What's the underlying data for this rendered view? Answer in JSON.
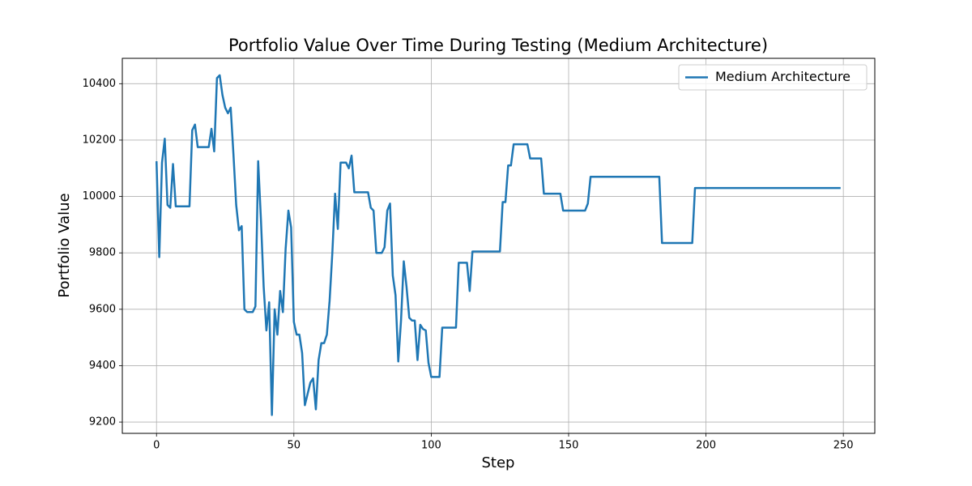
{
  "chart_data": {
    "type": "line",
    "title": "Portfolio Value Over Time During Testing (Medium Architecture)",
    "x_label": "Step",
    "y_label": "Portfolio Value",
    "x": [
      0,
      1,
      2,
      3,
      4,
      5,
      6,
      7,
      8,
      9,
      10,
      11,
      12,
      13,
      14,
      15,
      16,
      17,
      18,
      19,
      20,
      21,
      22,
      23,
      24,
      25,
      26,
      27,
      28,
      29,
      30,
      31,
      32,
      33,
      34,
      35,
      36,
      37,
      38,
      39,
      40,
      41,
      42,
      43,
      44,
      45,
      46,
      47,
      48,
      49,
      50,
      51,
      52,
      53,
      54,
      55,
      56,
      57,
      58,
      59,
      60,
      61,
      62,
      63,
      64,
      65,
      66,
      67,
      68,
      69,
      70,
      71,
      72,
      73,
      74,
      75,
      76,
      77,
      78,
      79,
      80,
      81,
      82,
      83,
      84,
      85,
      86,
      87,
      88,
      89,
      90,
      91,
      92,
      93,
      94,
      95,
      96,
      97,
      98,
      99,
      100,
      101,
      102,
      103,
      104,
      105,
      106,
      107,
      108,
      109,
      110,
      111,
      112,
      113,
      114,
      115,
      116,
      117,
      118,
      119,
      120,
      121,
      122,
      123,
      124,
      125,
      126,
      127,
      128,
      129,
      130,
      131,
      132,
      133,
      134,
      135,
      136,
      137,
      138,
      139,
      140,
      141,
      142,
      143,
      144,
      145,
      146,
      147,
      148,
      149,
      150,
      151,
      152,
      153,
      154,
      155,
      156,
      157,
      158,
      159,
      160,
      161,
      162,
      163,
      164,
      165,
      166,
      167,
      168,
      169,
      170,
      171,
      172,
      173,
      174,
      175,
      176,
      177,
      178,
      179,
      180,
      181,
      182,
      183,
      184,
      185,
      186,
      187,
      188,
      189,
      190,
      191,
      192,
      193,
      194,
      195,
      196,
      197,
      198,
      199,
      200,
      201,
      202,
      203,
      204,
      205,
      206,
      207,
      208,
      209,
      210,
      211,
      212,
      213,
      214,
      215,
      216,
      217,
      218,
      219,
      220,
      221,
      222,
      223,
      224,
      225,
      226,
      227,
      228,
      229,
      230,
      231,
      232,
      233,
      234,
      235,
      236,
      237,
      238,
      239,
      240,
      241,
      242,
      243,
      244,
      245,
      246,
      247,
      248,
      249
    ],
    "series": [
      {
        "name": "Medium Architecture",
        "color": "#1f77b4",
        "values": [
          10125,
          9785,
          10120,
          10205,
          9970,
          9960,
          10115,
          9965,
          9965,
          9965,
          9965,
          9965,
          9965,
          10235,
          10255,
          10175,
          10175,
          10175,
          10175,
          10175,
          10240,
          10160,
          10420,
          10430,
          10360,
          10315,
          10295,
          10315,
          10150,
          9970,
          9880,
          9895,
          9600,
          9590,
          9590,
          9590,
          9610,
          10125,
          9920,
          9680,
          9525,
          9625,
          9225,
          9600,
          9510,
          9665,
          9590,
          9815,
          9950,
          9890,
          9555,
          9510,
          9510,
          9445,
          9260,
          9300,
          9340,
          9355,
          9245,
          9420,
          9480,
          9480,
          9510,
          9630,
          9800,
          10010,
          9885,
          10120,
          10120,
          10120,
          10100,
          10145,
          10015,
          10015,
          10015,
          10015,
          10015,
          10015,
          9960,
          9950,
          9800,
          9800,
          9800,
          9820,
          9950,
          9975,
          9720,
          9650,
          9415,
          9560,
          9770,
          9680,
          9570,
          9560,
          9560,
          9420,
          9545,
          9530,
          9525,
          9410,
          9360,
          9360,
          9360,
          9360,
          9535,
          9535,
          9535,
          9535,
          9535,
          9535,
          9765,
          9765,
          9765,
          9765,
          9665,
          9805,
          9805,
          9805,
          9805,
          9805,
          9805,
          9805,
          9805,
          9805,
          9805,
          9805,
          9980,
          9980,
          10110,
          10110,
          10185,
          10185,
          10185,
          10185,
          10185,
          10185,
          10135,
          10135,
          10135,
          10135,
          10135,
          10010,
          10010,
          10010,
          10010,
          10010,
          10010,
          10010,
          9950,
          9950,
          9950,
          9950,
          9950,
          9950,
          9950,
          9950,
          9950,
          9975,
          10070,
          10070,
          10070,
          10070,
          10070,
          10070,
          10070,
          10070,
          10070,
          10070,
          10070,
          10070,
          10070,
          10070,
          10070,
          10070,
          10070,
          10070,
          10070,
          10070,
          10070,
          10070,
          10070,
          10070,
          10070,
          10070,
          9835,
          9835,
          9835,
          9835,
          9835,
          9835,
          9835,
          9835,
          9835,
          9835,
          9835,
          9835,
          10030,
          10030,
          10030,
          10030,
          10030,
          10030,
          10030,
          10030,
          10030,
          10030,
          10030,
          10030,
          10030,
          10030,
          10030,
          10030,
          10030,
          10030,
          10030,
          10030,
          10030,
          10030,
          10030,
          10030,
          10030,
          10030,
          10030,
          10030,
          10030,
          10030,
          10030,
          10030,
          10030,
          10030,
          10030,
          10030,
          10030,
          10030,
          10030,
          10030,
          10030,
          10030,
          10030,
          10030,
          10030,
          10030,
          10030,
          10030,
          10030,
          10030,
          10030,
          10030,
          10030,
          10030
        ]
      }
    ],
    "xlim": [
      -12.45,
      261.45
    ],
    "ylim": [
      9160,
      10490
    ],
    "xticks": [
      0,
      50,
      100,
      150,
      200,
      250
    ],
    "yticks": [
      9200,
      9400,
      9600,
      9800,
      10000,
      10200,
      10400
    ],
    "grid": true,
    "legend": "upper right"
  }
}
